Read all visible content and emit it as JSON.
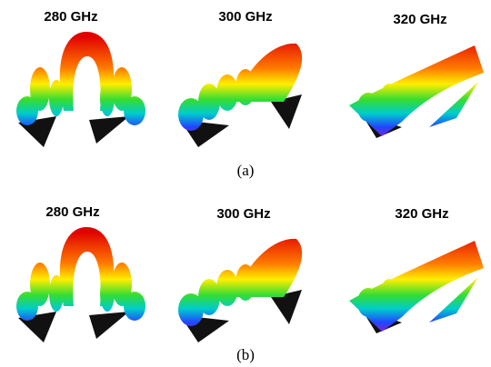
{
  "panels": [
    {
      "caption": "(a)",
      "plots": [
        {
          "label": "280 GHz"
        },
        {
          "label": "300 GHz"
        },
        {
          "label": "320 GHz"
        }
      ]
    },
    {
      "caption": "(b)",
      "plots": [
        {
          "label": "280 GHz"
        },
        {
          "label": "300 GHz"
        },
        {
          "label": "320 GHz"
        }
      ]
    }
  ]
}
